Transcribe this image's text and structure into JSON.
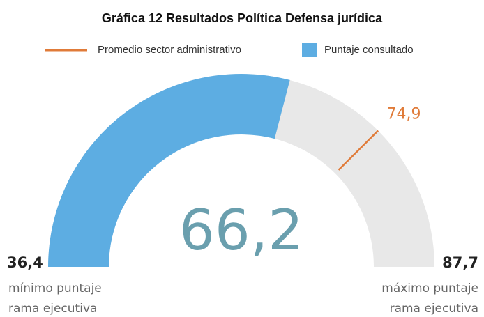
{
  "chart_data": {
    "type": "gauge",
    "title": "Gráfica 12 Resultados Política Defensa jurídica",
    "series": [
      {
        "name": "Puntaje consultado",
        "color": "#5dade2",
        "values": [
          66.2
        ],
        "value_labels": [
          "66,2"
        ]
      },
      {
        "name": "Promedio sector administrativo",
        "color": "#e07b39",
        "values": [
          74.9
        ],
        "value_labels": [
          "74,9"
        ]
      }
    ],
    "ylim": [
      36.4,
      87.7
    ],
    "yticks": [
      {
        "value": 36.4,
        "label": "36,4"
      },
      {
        "value": 87.7,
        "label": "87,7"
      }
    ],
    "track_color": "#e8e8e8",
    "min_caption": [
      "mínimo puntaje",
      "rama ejecutiva"
    ],
    "max_caption": [
      "máximo puntaje",
      "rama ejecutiva"
    ]
  }
}
